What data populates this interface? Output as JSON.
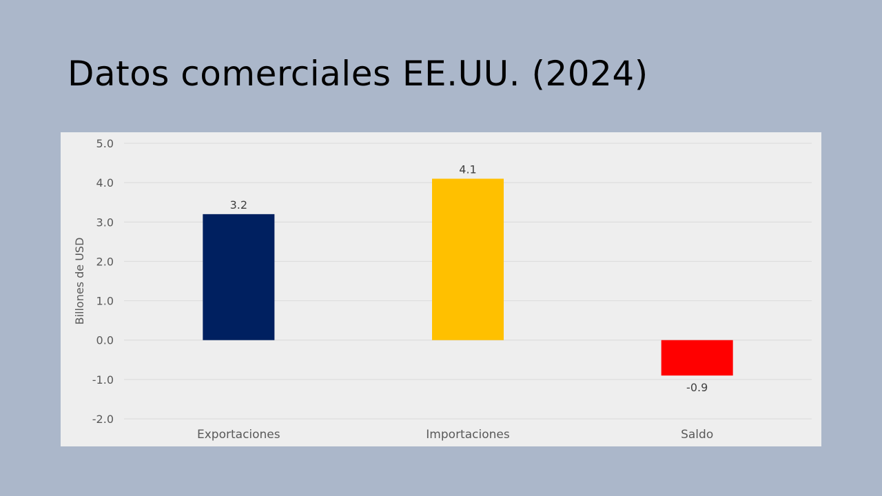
{
  "slide": {
    "title": "Datos comerciales EE.UU. (2024)"
  },
  "colors": {
    "background": "#abb7ca",
    "panel": "#eeeeee",
    "gridline": "#d9d9d9"
  },
  "chart_data": {
    "type": "bar",
    "title": "",
    "xlabel": "",
    "ylabel": "Billones de USD",
    "categories": [
      "Exportaciones",
      "Importaciones",
      "Saldo"
    ],
    "values": [
      3.2,
      4.1,
      -0.9
    ],
    "value_labels": [
      "3.2",
      "4.1",
      "-0.9"
    ],
    "bar_colors": [
      "#002060",
      "#ffc000",
      "#ff0000"
    ],
    "ylim": [
      -2.0,
      5.0
    ],
    "yticks": [
      5.0,
      4.0,
      3.0,
      2.0,
      1.0,
      0.0,
      -1.0,
      -2.0
    ],
    "ytick_labels": [
      "5.0",
      "4.0",
      "3.0",
      "2.0",
      "1.0",
      "0.0",
      "-1.0",
      "-2.0"
    ],
    "grid": true,
    "legend": false
  }
}
